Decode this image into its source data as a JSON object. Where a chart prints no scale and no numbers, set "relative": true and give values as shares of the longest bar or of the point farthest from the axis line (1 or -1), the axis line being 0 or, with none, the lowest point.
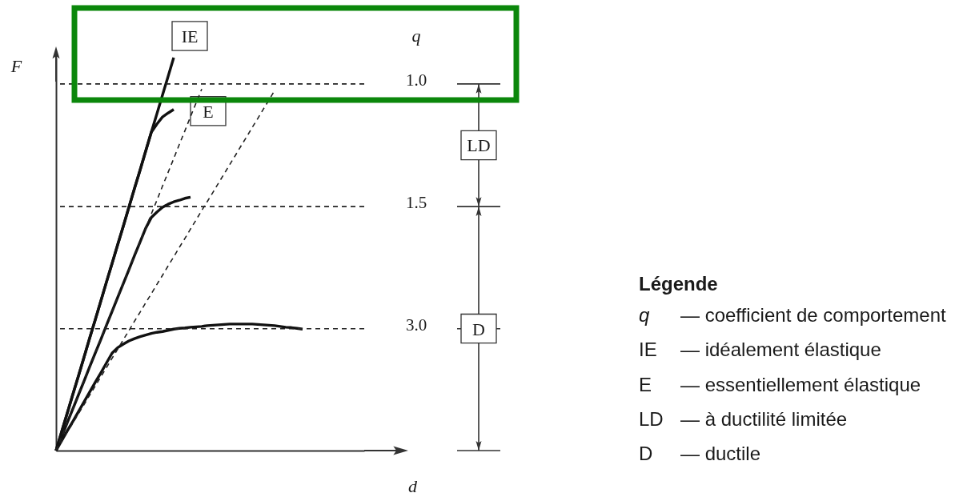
{
  "chart_data": {
    "type": "line",
    "relative": true,
    "xlabel": "d",
    "ylabel": "F",
    "categories": [
      null,
      null,
      null,
      null,
      null,
      null,
      null,
      null,
      null,
      null,
      null,
      null,
      null,
      null,
      null,
      null,
      null,
      null,
      null,
      null,
      null,
      null,
      null,
      null,
      null,
      null,
      null,
      null,
      null,
      null,
      null,
      null,
      null,
      null,
      null,
      null,
      null,
      null,
      null,
      null,
      null,
      null,
      null,
      null,
      null,
      null,
      null,
      null,
      null,
      null,
      null,
      null,
      null,
      null,
      null,
      null
    ],
    "series": [
      {
        "name": "IE",
        "color": "#111111",
        "values": [
          0,
          0.048,
          0.095,
          0.143,
          0.19,
          0.238,
          0.286,
          0.333,
          0.381,
          0.429,
          0.476,
          0.524,
          0.571,
          0.619,
          0.667,
          0.714,
          0.762,
          0.81,
          0.857,
          0.905,
          0.952,
          1,
          null,
          null,
          null,
          null,
          null,
          null,
          null,
          null,
          null,
          null,
          null,
          null,
          null,
          null,
          null,
          null,
          null,
          null,
          null,
          null,
          null,
          null,
          null,
          null,
          null,
          null,
          null,
          null,
          null,
          null,
          null,
          null,
          null,
          null
        ]
      },
      {
        "name": "E",
        "color": "#111111",
        "values": [
          0,
          0.048,
          0.095,
          0.143,
          0.19,
          0.238,
          0.286,
          0.333,
          0.381,
          0.429,
          0.476,
          0.524,
          0.571,
          0.619,
          0.667,
          0.714,
          0.762,
          0.81,
          0.831,
          0.849,
          0.859,
          0.868,
          null,
          null,
          null,
          null,
          null,
          null,
          null,
          null,
          null,
          null,
          null,
          null,
          null,
          null,
          null,
          null,
          null,
          null,
          null,
          null,
          null,
          null,
          null,
          null,
          null,
          null,
          null,
          null,
          null,
          null,
          null,
          null,
          null,
          null
        ]
      },
      {
        "color": "#111111",
        "values": [
          0,
          0.035,
          0.071,
          0.106,
          0.142,
          0.177,
          0.213,
          0.248,
          0.283,
          0.319,
          0.354,
          0.39,
          0.425,
          0.46,
          0.496,
          0.531,
          0.566,
          0.593,
          0.607,
          0.619,
          0.627,
          0.633,
          0.637,
          0.642,
          0.645,
          null,
          null,
          null,
          null,
          null,
          null,
          null,
          null,
          null,
          null,
          null,
          null,
          null,
          null,
          null,
          null,
          null,
          null,
          null,
          null,
          null,
          null,
          null,
          null,
          null,
          null,
          null,
          null,
          null,
          null,
          null
        ]
      },
      {
        "color": "#111111",
        "values": [
          0,
          0.025,
          0.05,
          0.074,
          0.099,
          0.124,
          0.149,
          0.174,
          0.198,
          0.223,
          0.248,
          0.262,
          0.271,
          0.279,
          0.285,
          0.29,
          0.294,
          0.298,
          0.301,
          0.303,
          0.306,
          0.309,
          0.311,
          0.312,
          0.314,
          0.315,
          0.316,
          0.318,
          0.319,
          0.32,
          0.321,
          0.322,
          0.322,
          0.322,
          0.322,
          0.322,
          0.321,
          0.32,
          0.319,
          0.318,
          0.316,
          0.314,
          0.313,
          0.311,
          0.309,
          null,
          null,
          null,
          null,
          null,
          null,
          null,
          null,
          null,
          null,
          null
        ]
      },
      {
        "color": "#222222",
        "line_style": "dashed",
        "values": [
          0,
          0.035,
          0.071,
          0.106,
          0.142,
          0.177,
          0.213,
          0.248,
          0.283,
          0.319,
          0.354,
          0.39,
          0.425,
          0.46,
          0.496,
          0.531,
          0.566,
          0.602,
          0.637,
          0.673,
          0.708,
          0.743,
          0.779,
          0.814,
          0.85,
          0.885,
          0.92,
          null,
          null,
          null,
          null,
          null,
          null,
          null,
          null,
          null,
          null,
          null,
          null,
          null,
          null,
          null,
          null,
          null,
          null,
          null,
          null,
          null,
          null,
          null,
          null,
          null,
          null,
          null,
          null,
          null
        ]
      },
      {
        "color": "#222222",
        "line_style": "dashed",
        "values": [
          0,
          0.023,
          0.047,
          0.07,
          0.094,
          0.117,
          0.141,
          0.164,
          0.188,
          0.211,
          0.235,
          0.258,
          0.282,
          0.305,
          0.329,
          0.352,
          0.376,
          0.399,
          0.423,
          0.446,
          0.47,
          0.493,
          0.517,
          0.54,
          0.564,
          0.587,
          0.611,
          0.634,
          0.657,
          0.681,
          0.704,
          0.728,
          0.751,
          0.775,
          0.798,
          0.822,
          0.845,
          0.869,
          0.892,
          0.916,
          null,
          null,
          null,
          null,
          null,
          null,
          null,
          null,
          null,
          null,
          null,
          null,
          null,
          null,
          null,
          null
        ]
      }
    ],
    "ref_lines": [
      {
        "axis": "y",
        "value": 0.933,
        "line_style": "dashed",
        "color": "#222222"
      },
      {
        "axis": "y",
        "value": 0.621,
        "line_style": "dashed",
        "color": "#222222"
      },
      {
        "axis": "y",
        "value": 0.31,
        "line_style": "dashed",
        "color": "#222222"
      }
    ],
    "annotations": [
      "q",
      "1.0",
      "1.5",
      "3.0",
      "LD",
      "D",
      "Légende",
      "q — coefficient de comportement",
      "IE — idéalement élastique",
      "E — essentiellement élastique",
      "LD — à ductilité limitée",
      "D — ductile"
    ]
  }
}
